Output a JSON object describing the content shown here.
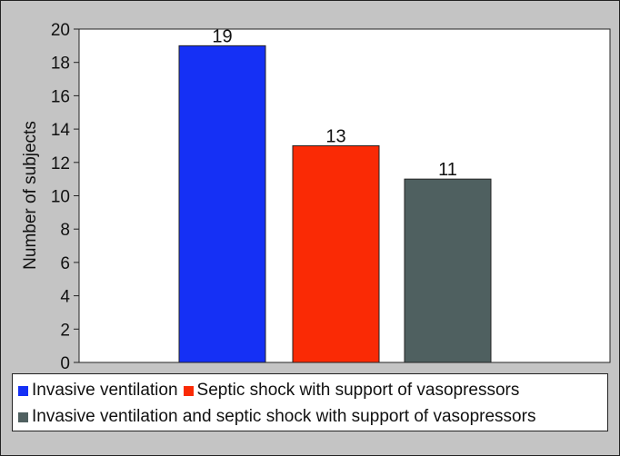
{
  "chart_data": {
    "type": "bar",
    "categories": [
      "Invasive ventilation",
      "Septic shock with support of vasopressors",
      "Invasive ventilation and septic shock with support of vasopressors"
    ],
    "values": [
      19,
      13,
      11
    ],
    "data_labels": [
      "19",
      "13",
      "11"
    ],
    "colors": [
      "#1530f5",
      "#fa2a05",
      "#4f6060"
    ],
    "title": "",
    "xlabel": "",
    "ylabel": "Number of subjects",
    "ylim": [
      0,
      20
    ],
    "yticks": [
      "0",
      "2",
      "4",
      "6",
      "8",
      "10",
      "12",
      "14",
      "16",
      "18",
      "20"
    ],
    "grid": false,
    "legend_position": "bottom"
  },
  "legend": {
    "items": [
      {
        "label": "Invasive ventilation",
        "color": "#1530f5"
      },
      {
        "label": "Septic shock with support of vasopressors",
        "color": "#fa2a05"
      },
      {
        "label": "Invasive ventilation and septic shock with support of vasopressors",
        "color": "#4f6060"
      }
    ]
  }
}
